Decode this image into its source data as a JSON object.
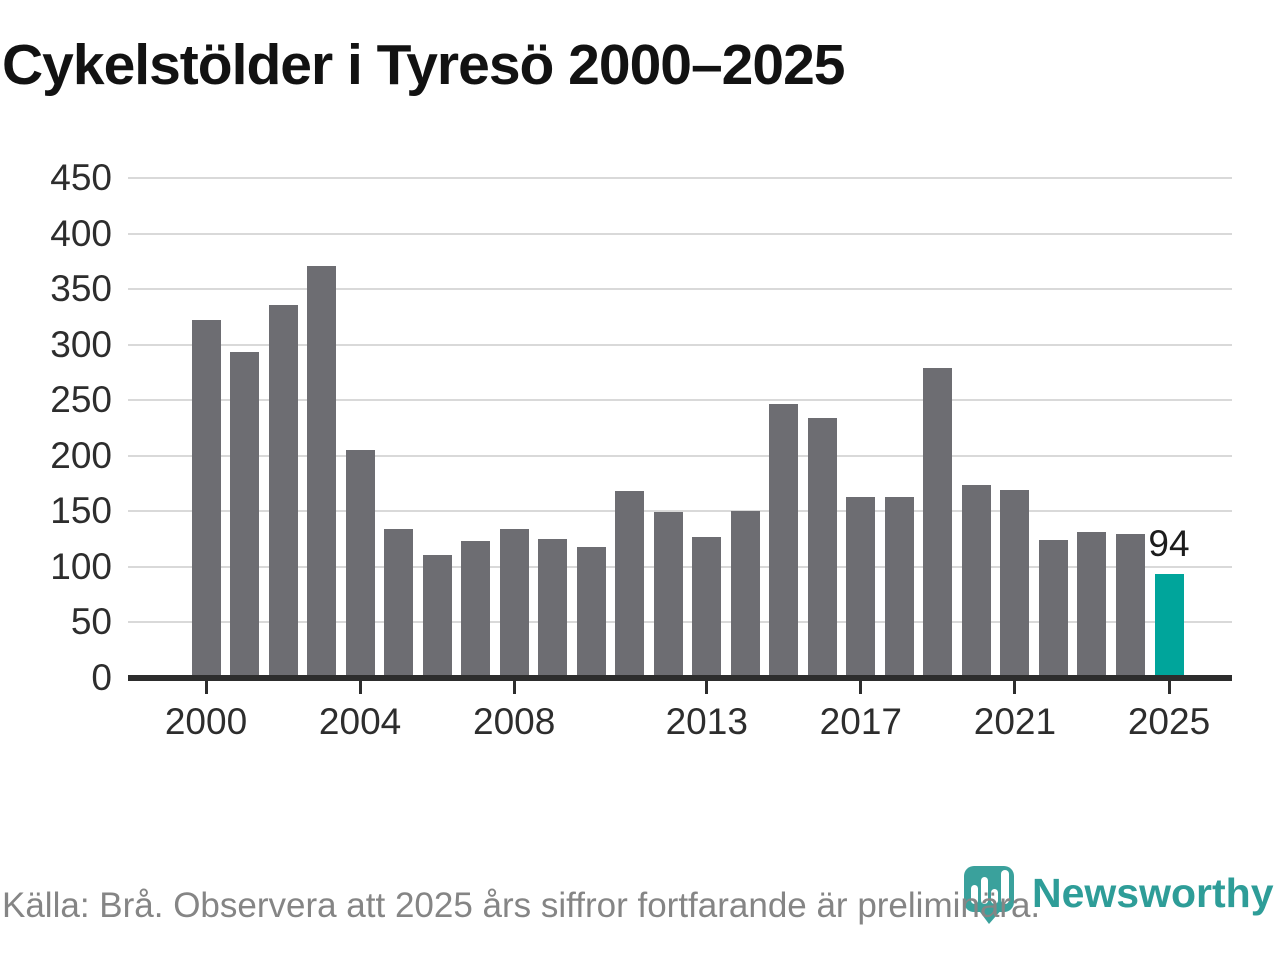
{
  "title": "Cykelstölder i Tyresö 2000–2025",
  "footer": {
    "source_note": "Källa: Brå. Observera att 2025 års siffror fortfarande är preliminära."
  },
  "branding": {
    "logo_text": "Newsworthy",
    "logo_icon": "newsworthy-pin-icon"
  },
  "colors": {
    "bar": "#6d6d72",
    "highlight": "#00a59b",
    "gridline": "#d9d9d9",
    "axis": "#2d2d2d",
    "tick_label": "#2d2d2d",
    "title": "#121212",
    "source_text": "#858585",
    "logo": "#3aa19c",
    "logo_text_color": "#2e9d98"
  },
  "chart_data": {
    "type": "bar",
    "title": "Cykelstölder i Tyresö 2000–2025",
    "x": [
      2000,
      2001,
      2002,
      2003,
      2004,
      2005,
      2006,
      2007,
      2008,
      2009,
      2010,
      2011,
      2012,
      2013,
      2014,
      2015,
      2016,
      2017,
      2018,
      2019,
      2020,
      2021,
      2022,
      2023,
      2024,
      2025
    ],
    "values": [
      322,
      293,
      336,
      371,
      205,
      134,
      111,
      123,
      134,
      125,
      118,
      168,
      149,
      127,
      150,
      247,
      234,
      163,
      163,
      279,
      174,
      169,
      124,
      131,
      130,
      94
    ],
    "highlight_year": 2025,
    "highlight_value_label": "94",
    "y_ticks": [
      0,
      50,
      100,
      150,
      200,
      250,
      300,
      350,
      400,
      450
    ],
    "x_tick_years": [
      2000,
      2004,
      2008,
      2013,
      2017,
      2021,
      2025
    ],
    "ylim": [
      0,
      450
    ],
    "grid": true,
    "legend_position": "none"
  }
}
